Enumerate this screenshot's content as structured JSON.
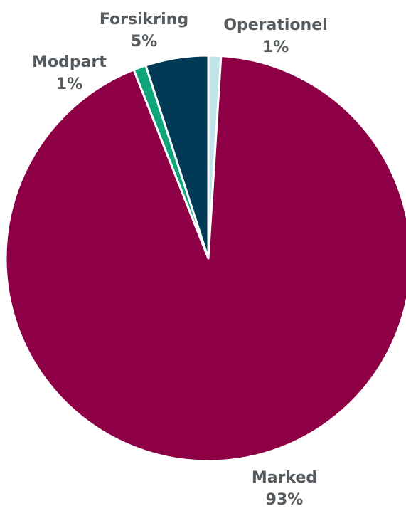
{
  "chart_data": {
    "type": "pie",
    "slices": [
      {
        "name": "Operationel",
        "value": 1,
        "label": "1%",
        "color": "#bfe3e9"
      },
      {
        "name": "Marked",
        "value": 93,
        "label": "93%",
        "color": "#8e0046"
      },
      {
        "name": "Modpart",
        "value": 1,
        "label": "1%",
        "color": "#10a47a"
      },
      {
        "name": "Forsikring",
        "value": 5,
        "label": "5%",
        "color": "#003a57"
      }
    ],
    "label_color": "#555a5e",
    "separator_color": "#ffffff",
    "legend": "none"
  }
}
